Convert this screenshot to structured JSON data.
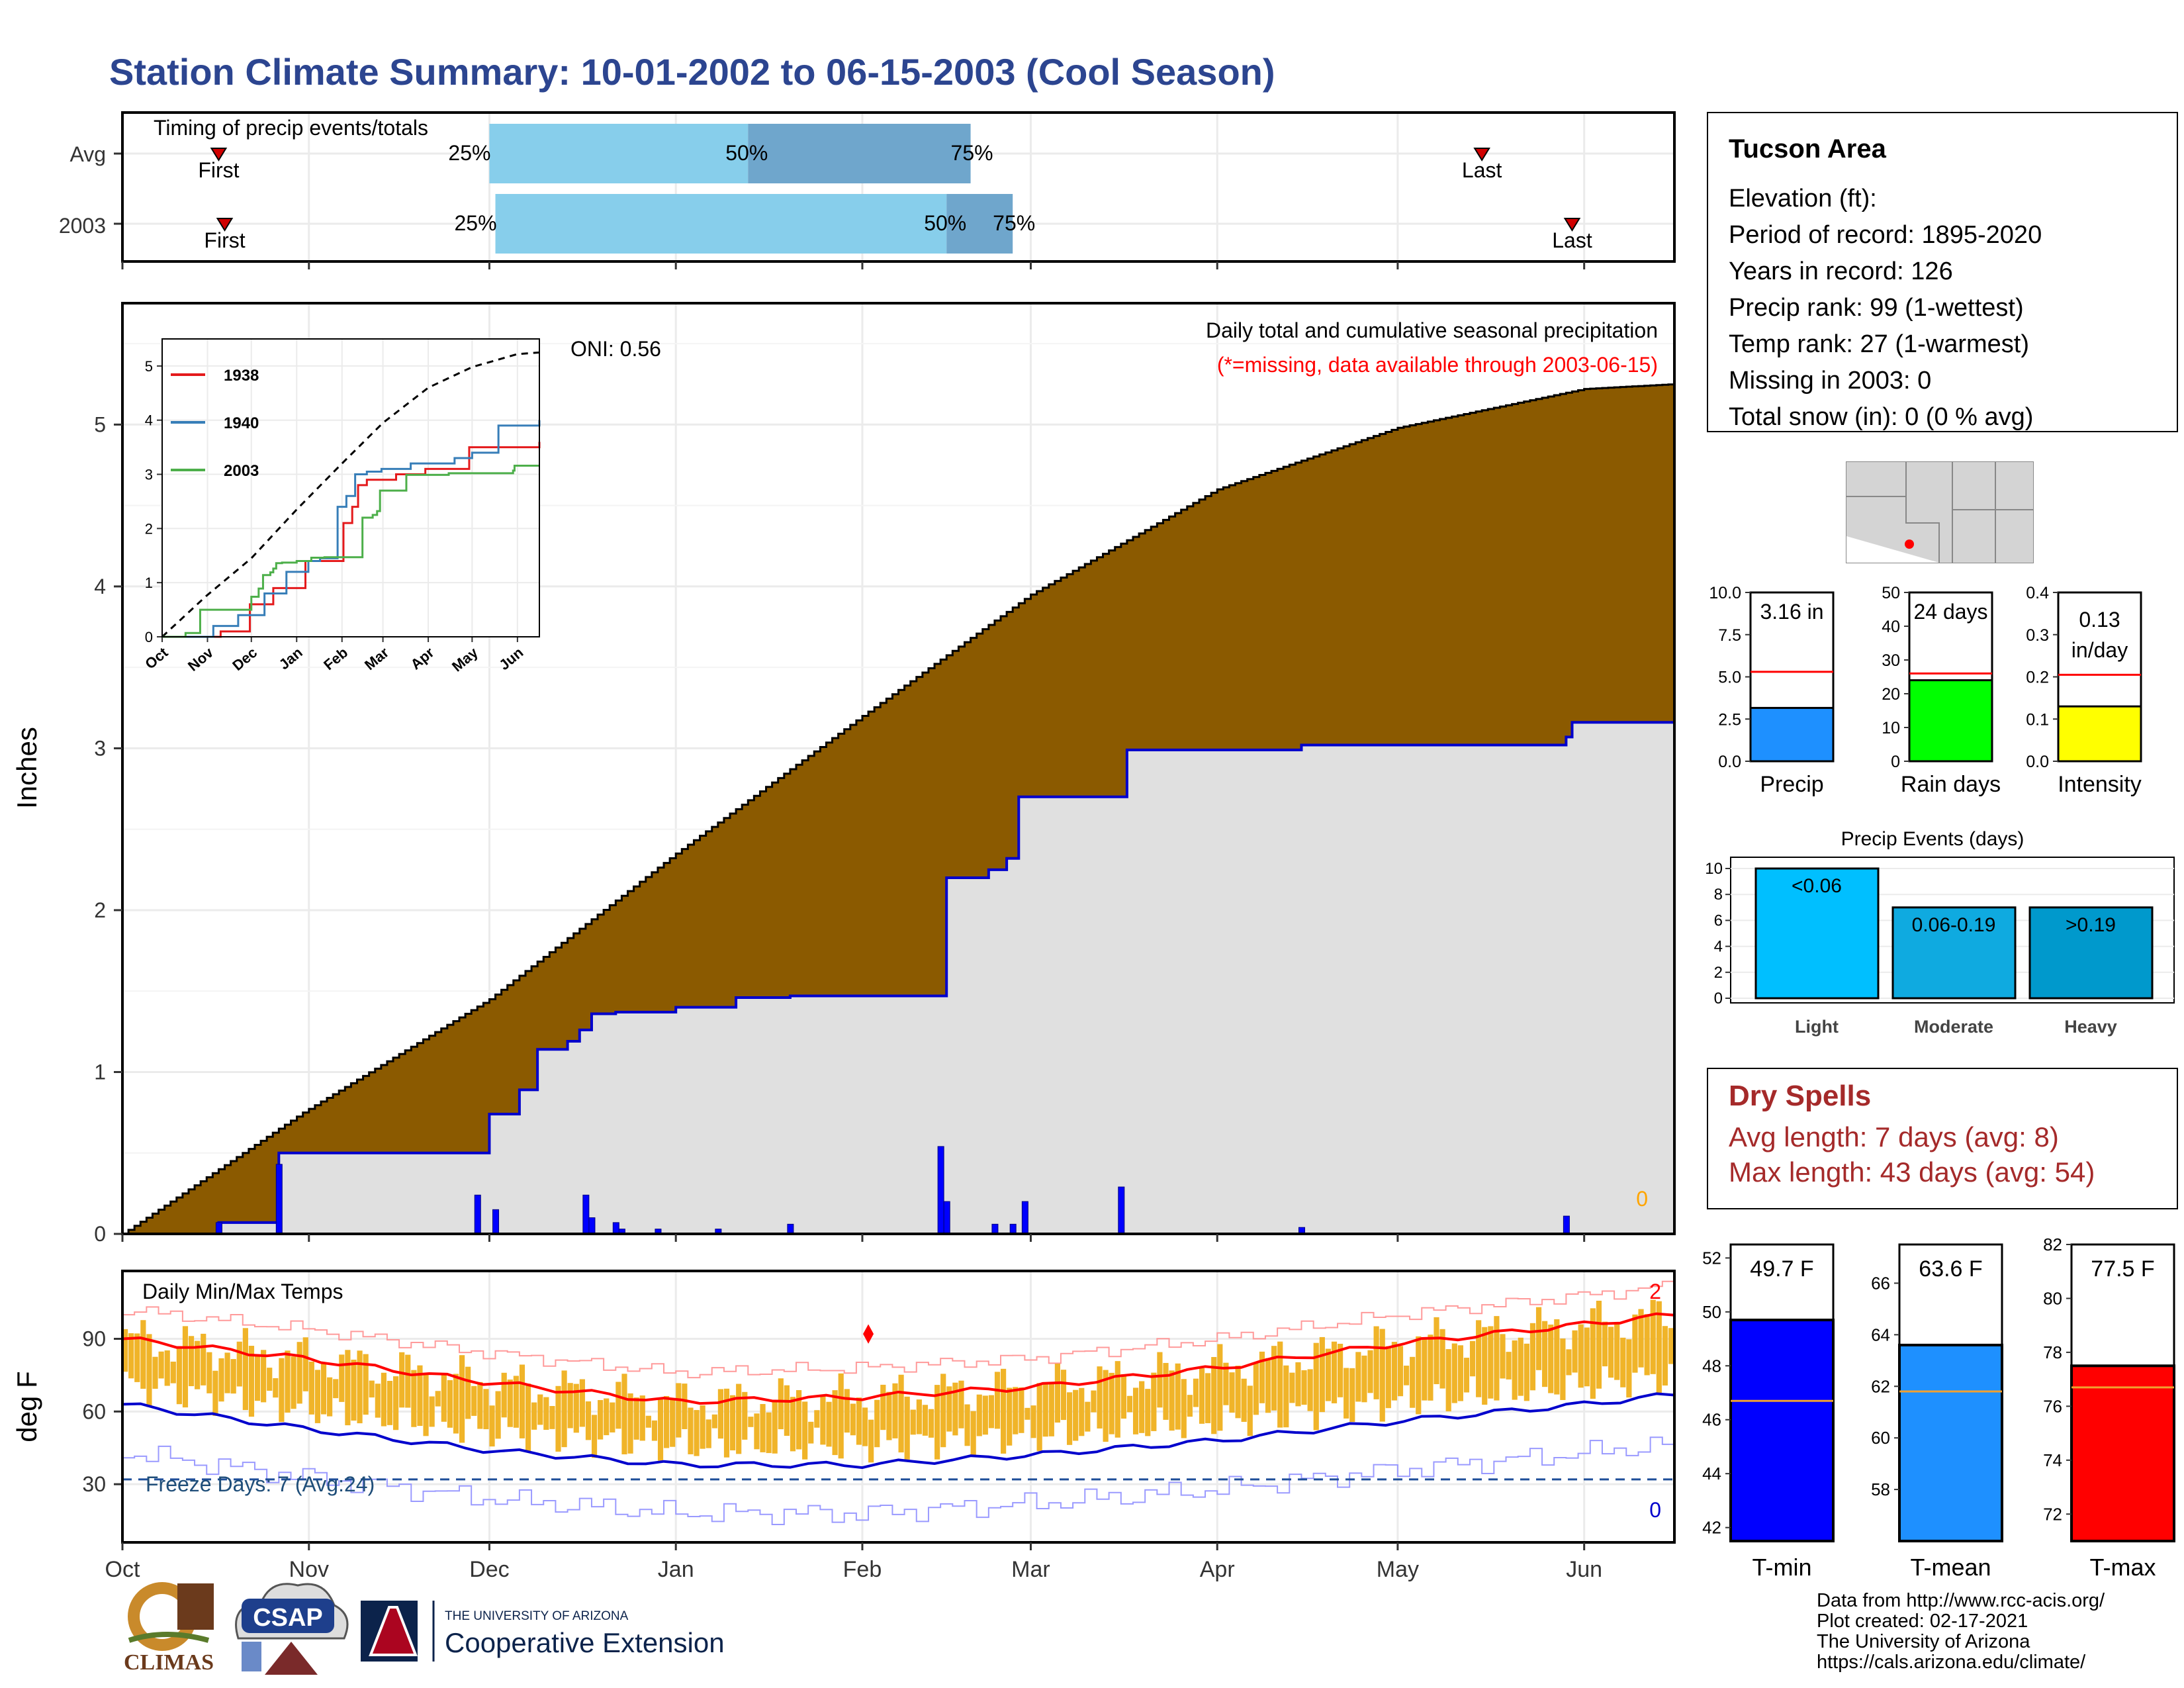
{
  "title": "Station Climate Summary: 10-01-2002 to 06-15-2003 (Cool Season)",
  "timing_panel": {
    "title": "Timing of precip events/totals",
    "rows": [
      {
        "label": "Avg",
        "first": "First",
        "last": "Last",
        "first_day": 16,
        "last_day": 226,
        "p25": "25%",
        "p50": "50%",
        "p75": "75%",
        "p25_day": 61,
        "p50_day": 104,
        "p75_day": 141
      },
      {
        "label": "2003",
        "first": "First",
        "last": "Last",
        "first_day": 17,
        "last_day": 241,
        "p25": "25%",
        "p50": "50%",
        "p75": "75%",
        "p25_day": 62,
        "p50_day": 137,
        "p75_day": 148
      }
    ],
    "colors": {
      "light": "#87ceeb",
      "dark": "#6fa6cc",
      "marker": "#d00000"
    }
  },
  "precip_panel": {
    "ylabel": "Inches",
    "oni": "ONI: 0.56",
    "note1": "Daily total and cumulative seasonal precipitation",
    "note2": "(*=missing, data available through 2003-06-15)",
    "missing_count": "0",
    "ylim": [
      0,
      5.75
    ],
    "yticks": [
      "0",
      "1",
      "2",
      "3",
      "4",
      "5"
    ],
    "colors": {
      "normal_fill": "#8b5a00",
      "actual_fill": "#e0e0e0",
      "actual_line": "#0000cc",
      "bars": "#0000ff"
    }
  },
  "inset": {
    "yticks": [
      "0",
      "1",
      "2",
      "3",
      "4",
      "5"
    ],
    "months": [
      "Oct",
      "Nov",
      "Dec",
      "Jan",
      "Feb",
      "Mar",
      "Apr",
      "May",
      "Jun"
    ],
    "legend": [
      {
        "name": "1938",
        "color": "#e41a1c"
      },
      {
        "name": "1940",
        "color": "#377eb8"
      },
      {
        "name": "2003",
        "color": "#4daf4a"
      }
    ]
  },
  "temp_panel": {
    "ylabel": "deg F",
    "title": "Daily Min/Max Temps",
    "freeze": "Freeze Days: 7 (Avg:24)",
    "record_high_count": "2",
    "record_low_count": "0",
    "yticks": [
      "30",
      "60",
      "90"
    ],
    "ylim": [
      6,
      118
    ],
    "freeze_line": 32,
    "colors": {
      "bars": "#f0b429",
      "avg_max": "#ff0000",
      "avg_min": "#0000cc",
      "rec_max": "#ff9a9a",
      "rec_min": "#9a9aff",
      "freeze": "#1f4e99"
    }
  },
  "xaxis": {
    "months": [
      "Oct",
      "Nov",
      "Dec",
      "Jan",
      "Feb",
      "Mar",
      "Apr",
      "May",
      "Jun"
    ]
  },
  "info_box": {
    "station": "Tucson Area",
    "lines": [
      "Elevation (ft):",
      "Period of record: 1895-2020",
      "Years in record: 126",
      "Precip rank: 99 (1-wettest)",
      "Temp rank: 27 (1-warmest)",
      "Missing in 2003: 0",
      "Total snow (in): 0 (0 % avg)"
    ]
  },
  "gauges": [
    {
      "name": "Precip",
      "label_top": "3.16 in",
      "value": 3.16,
      "avg": 5.3,
      "max": 10.0,
      "ticks": [
        "0.0",
        "2.5",
        "5.0",
        "7.5",
        "10.0"
      ],
      "color": "#1e90ff"
    },
    {
      "name": "Rain days",
      "label_top": "24 days",
      "value": 24,
      "avg": 26,
      "max": 50,
      "ticks": [
        "0",
        "10",
        "20",
        "30",
        "40",
        "50"
      ],
      "color": "#00ff00"
    },
    {
      "name": "Intensity",
      "label_top": "0.13",
      "label_top2": "in/day",
      "value": 0.13,
      "avg": 0.205,
      "max": 0.4,
      "ticks": [
        "0.0",
        "0.1",
        "0.2",
        "0.3",
        "0.4"
      ],
      "color": "#ffff00"
    }
  ],
  "events": {
    "title": "Precip Events (days)",
    "yticks": [
      "0",
      "2",
      "4",
      "6",
      "8",
      "10"
    ],
    "bars": [
      {
        "category": "Light",
        "label": "<0.06",
        "value": 10,
        "color": "#00bfff"
      },
      {
        "category": "Moderate",
        "label": "0.06-0.19",
        "value": 7,
        "color": "#0faae0"
      },
      {
        "category": "Heavy",
        "label": ">0.19",
        "value": 7,
        "color": "#0099cc"
      }
    ]
  },
  "dry_spells": {
    "title": "Dry Spells",
    "avg_line": "Avg length: 7 days (avg: 8)",
    "max_line": "Max length: 43 days (avg: 54)",
    "color": "#a52a2a"
  },
  "temp_gauges": [
    {
      "name": "T-min",
      "label_top": "49.7 F",
      "value": 49.7,
      "avg": 46.7,
      "min": 41.5,
      "max": 52.5,
      "ticks": [
        "42",
        "44",
        "46",
        "48",
        "50",
        "52"
      ],
      "color": "#0000ff"
    },
    {
      "name": "T-mean",
      "label_top": "63.6 F",
      "value": 63.6,
      "avg": 61.8,
      "min": 56.0,
      "max": 67.5,
      "ticks": [
        "58",
        "60",
        "62",
        "64",
        "66"
      ],
      "color": "#1e90ff"
    },
    {
      "name": "T-max",
      "label_top": "77.5 F",
      "value": 77.5,
      "avg": 76.7,
      "min": 71.0,
      "max": 82.0,
      "ticks": [
        "72",
        "74",
        "76",
        "78",
        "80",
        "82"
      ],
      "color": "#ff0000"
    }
  ],
  "credits": [
    "Data from http://www.rcc-acis.org/",
    "Plot created: 02-17-2021",
    "The University of Arizona",
    "https://cals.arizona.edu/climate/"
  ],
  "logos": {
    "climas": "CLIMAS",
    "csap": "CSAP",
    "ua_small": "THE UNIVERSITY OF ARIZONA",
    "ua_big": "Cooperative Extension"
  },
  "chart_data": [
    {
      "type": "line",
      "title": "Daily total and cumulative seasonal precipitation",
      "ylabel": "Inches",
      "ylim": [
        0,
        5.75
      ],
      "series": [
        {
          "name": "",
          "x_day": [
            0,
            30,
            61,
            92,
            123,
            151,
            182,
            212,
            243,
            258
          ],
          "values": [
            0,
            0.75,
            1.45,
            2.35,
            3.2,
            3.95,
            4.6,
            4.98,
            5.22,
            5.25
          ]
        },
        {
          "name": "",
          "x_day": [
            0,
            16,
            26,
            61,
            66,
            69,
            74,
            76,
            78,
            82,
            92,
            102,
            111,
            137,
            138,
            139,
            144,
            147,
            149,
            151,
            167,
            196,
            240,
            241,
            258
          ],
          "values": [
            0,
            0.07,
            0.5,
            0.74,
            0.89,
            1.14,
            1.19,
            1.26,
            1.36,
            1.37,
            1.4,
            1.46,
            1.47,
            2.2,
            2.2,
            2.2,
            2.25,
            2.32,
            2.7,
            2.7,
            2.99,
            3.02,
            3.07,
            3.16,
            3.16
          ]
        }
      ],
      "daily_bars": {
        "x_day": [
          16,
          26,
          59,
          62,
          77,
          78,
          82,
          83,
          89,
          99,
          111,
          136,
          137,
          145,
          148,
          150,
          166,
          196,
          240
        ],
        "values": [
          0.07,
          0.43,
          0.24,
          0.15,
          0.24,
          0.1,
          0.07,
          0.03,
          0.03,
          0.03,
          0.06,
          0.54,
          0.2,
          0.06,
          0.06,
          0.2,
          0.29,
          0.04,
          0.11
        ]
      }
    },
    {
      "type": "line",
      "title": "",
      "months": [
        "Oct",
        "Nov",
        "Dec",
        "Jan",
        "Feb",
        "Mar",
        "Apr",
        "May",
        "Jun"
      ],
      "ylim": [
        0,
        5.5
      ],
      "series": [
        {
          "name": "",
          "x_day": [
            0,
            30,
            61,
            92,
            123,
            151,
            182,
            212,
            243,
            258
          ],
          "values": [
            0,
            0.75,
            1.45,
            2.35,
            3.2,
            3.95,
            4.6,
            4.98,
            5.22,
            5.25
          ]
        },
        {
          "name": "1938",
          "x_day": [
            0,
            40,
            60,
            76,
            85,
            95,
            98,
            114,
            124,
            130,
            134,
            140,
            150,
            160,
            180,
            210,
            258
          ],
          "values": [
            0,
            0.1,
            0.6,
            0.9,
            0.9,
            0.9,
            1.4,
            1.4,
            2.1,
            2.4,
            2.8,
            2.9,
            2.9,
            3.0,
            3.1,
            3.5,
            3.6
          ]
        },
        {
          "name": "1940",
          "x_day": [
            0,
            35,
            52,
            70,
            85,
            100,
            108,
            120,
            126,
            132,
            136,
            140,
            150,
            170,
            200,
            212,
            230,
            258
          ],
          "values": [
            0,
            0.2,
            0.4,
            0.8,
            1.2,
            1.4,
            1.45,
            2.4,
            2.6,
            3.0,
            3.0,
            3.05,
            3.1,
            3.2,
            3.3,
            3.4,
            3.9,
            4.0
          ]
        },
        {
          "name": "2003",
          "x_day": [
            0,
            16,
            26,
            61,
            66,
            69,
            74,
            76,
            78,
            82,
            92,
            102,
            111,
            137,
            138,
            139,
            144,
            147,
            149,
            151,
            167,
            196,
            240,
            241,
            258
          ],
          "values": [
            0,
            0.07,
            0.5,
            0.74,
            0.89,
            1.14,
            1.19,
            1.26,
            1.36,
            1.37,
            1.4,
            1.46,
            1.47,
            2.2,
            2.2,
            2.2,
            2.25,
            2.32,
            2.7,
            2.7,
            2.99,
            3.02,
            3.07,
            3.16,
            3.16
          ]
        }
      ]
    },
    {
      "type": "line",
      "title": "Daily Min/Max Temps",
      "ylabel": "deg F",
      "ylim": [
        6,
        118
      ],
      "series": [
        {
          "name": "",
          "x_day": [
            0,
            30,
            61,
            92,
            123,
            151,
            182,
            212,
            243,
            258
          ],
          "values": [
            90,
            82,
            72,
            64,
            66,
            70,
            78,
            88,
            96,
            100
          ]
        },
        {
          "name": "",
          "x_day": [
            0,
            30,
            61,
            92,
            123,
            151,
            182,
            212,
            243,
            258
          ],
          "values": [
            63,
            53,
            44,
            38,
            38,
            42,
            48,
            56,
            63,
            67
          ]
        }
      ]
    },
    {
      "type": "bar",
      "title": "Precip Events (days)",
      "categories": [
        "Light",
        "Moderate",
        "Heavy"
      ],
      "values": [
        10,
        7,
        7
      ]
    }
  ]
}
